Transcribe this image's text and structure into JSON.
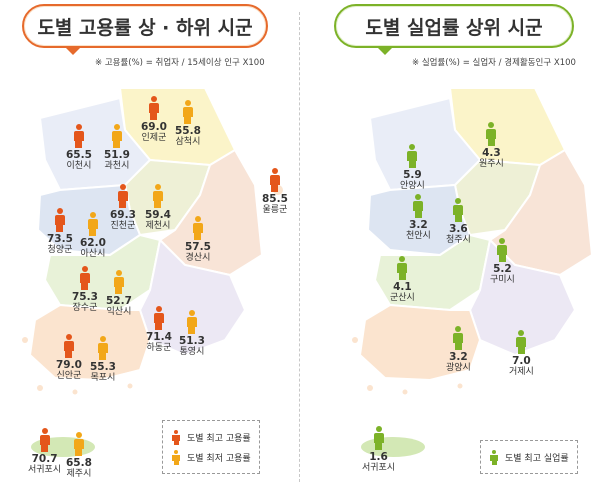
{
  "left": {
    "title": "도별 고용률 상 · 하위 시군",
    "formula": "※ 고용률(%) = 취업자 / 15세이상 인구 X100",
    "colors": {
      "high": "#e4561b",
      "low": "#f2a719",
      "border": "#e66a2c"
    },
    "markers": [
      {
        "value": "69.0",
        "name": "인제군",
        "type": "high"
      },
      {
        "value": "55.8",
        "name": "삼척시",
        "type": "low"
      },
      {
        "value": "65.5",
        "name": "이천시",
        "type": "high"
      },
      {
        "value": "51.9",
        "name": "과천시",
        "type": "low"
      },
      {
        "value": "85.5",
        "name": "울릉군",
        "type": "high"
      },
      {
        "value": "69.3",
        "name": "진천군",
        "type": "high"
      },
      {
        "value": "59.4",
        "name": "제천시",
        "type": "low"
      },
      {
        "value": "73.5",
        "name": "청양군",
        "type": "high"
      },
      {
        "value": "62.0",
        "name": "아산시",
        "type": "low"
      },
      {
        "value": "57.5",
        "name": "경산시",
        "type": "low"
      },
      {
        "value": "75.3",
        "name": "장수군",
        "type": "high"
      },
      {
        "value": "52.7",
        "name": "익산시",
        "type": "low"
      },
      {
        "value": "71.4",
        "name": "하동군",
        "type": "high"
      },
      {
        "value": "51.3",
        "name": "통영시",
        "type": "low"
      },
      {
        "value": "79.0",
        "name": "신안군",
        "type": "high"
      },
      {
        "value": "55.3",
        "name": "목포시",
        "type": "low"
      },
      {
        "value": "70.7",
        "name": "서귀포시",
        "type": "high"
      },
      {
        "value": "65.8",
        "name": "제주시",
        "type": "low"
      }
    ],
    "legend": {
      "high": "도별 최고 고용률",
      "low": "도별 최저 고용률"
    }
  },
  "right": {
    "title": "도별 실업률 상위 시군",
    "formula": "※ 실업률(%) = 실업자 / 경제활동인구 X100",
    "colors": {
      "high": "#7cb228",
      "border": "#7cb228"
    },
    "markers": [
      {
        "value": "5.9",
        "name": "안양시"
      },
      {
        "value": "4.3",
        "name": "원주시"
      },
      {
        "value": "3.2",
        "name": "천안시"
      },
      {
        "value": "3.6",
        "name": "청주시"
      },
      {
        "value": "4.1",
        "name": "군산시"
      },
      {
        "value": "5.2",
        "name": "구미시"
      },
      {
        "value": "3.2",
        "name": "광양시"
      },
      {
        "value": "7.0",
        "name": "거제시"
      },
      {
        "value": "1.6",
        "name": "서귀포시"
      }
    ],
    "legend": {
      "high": "도별 최고 실업률"
    }
  }
}
